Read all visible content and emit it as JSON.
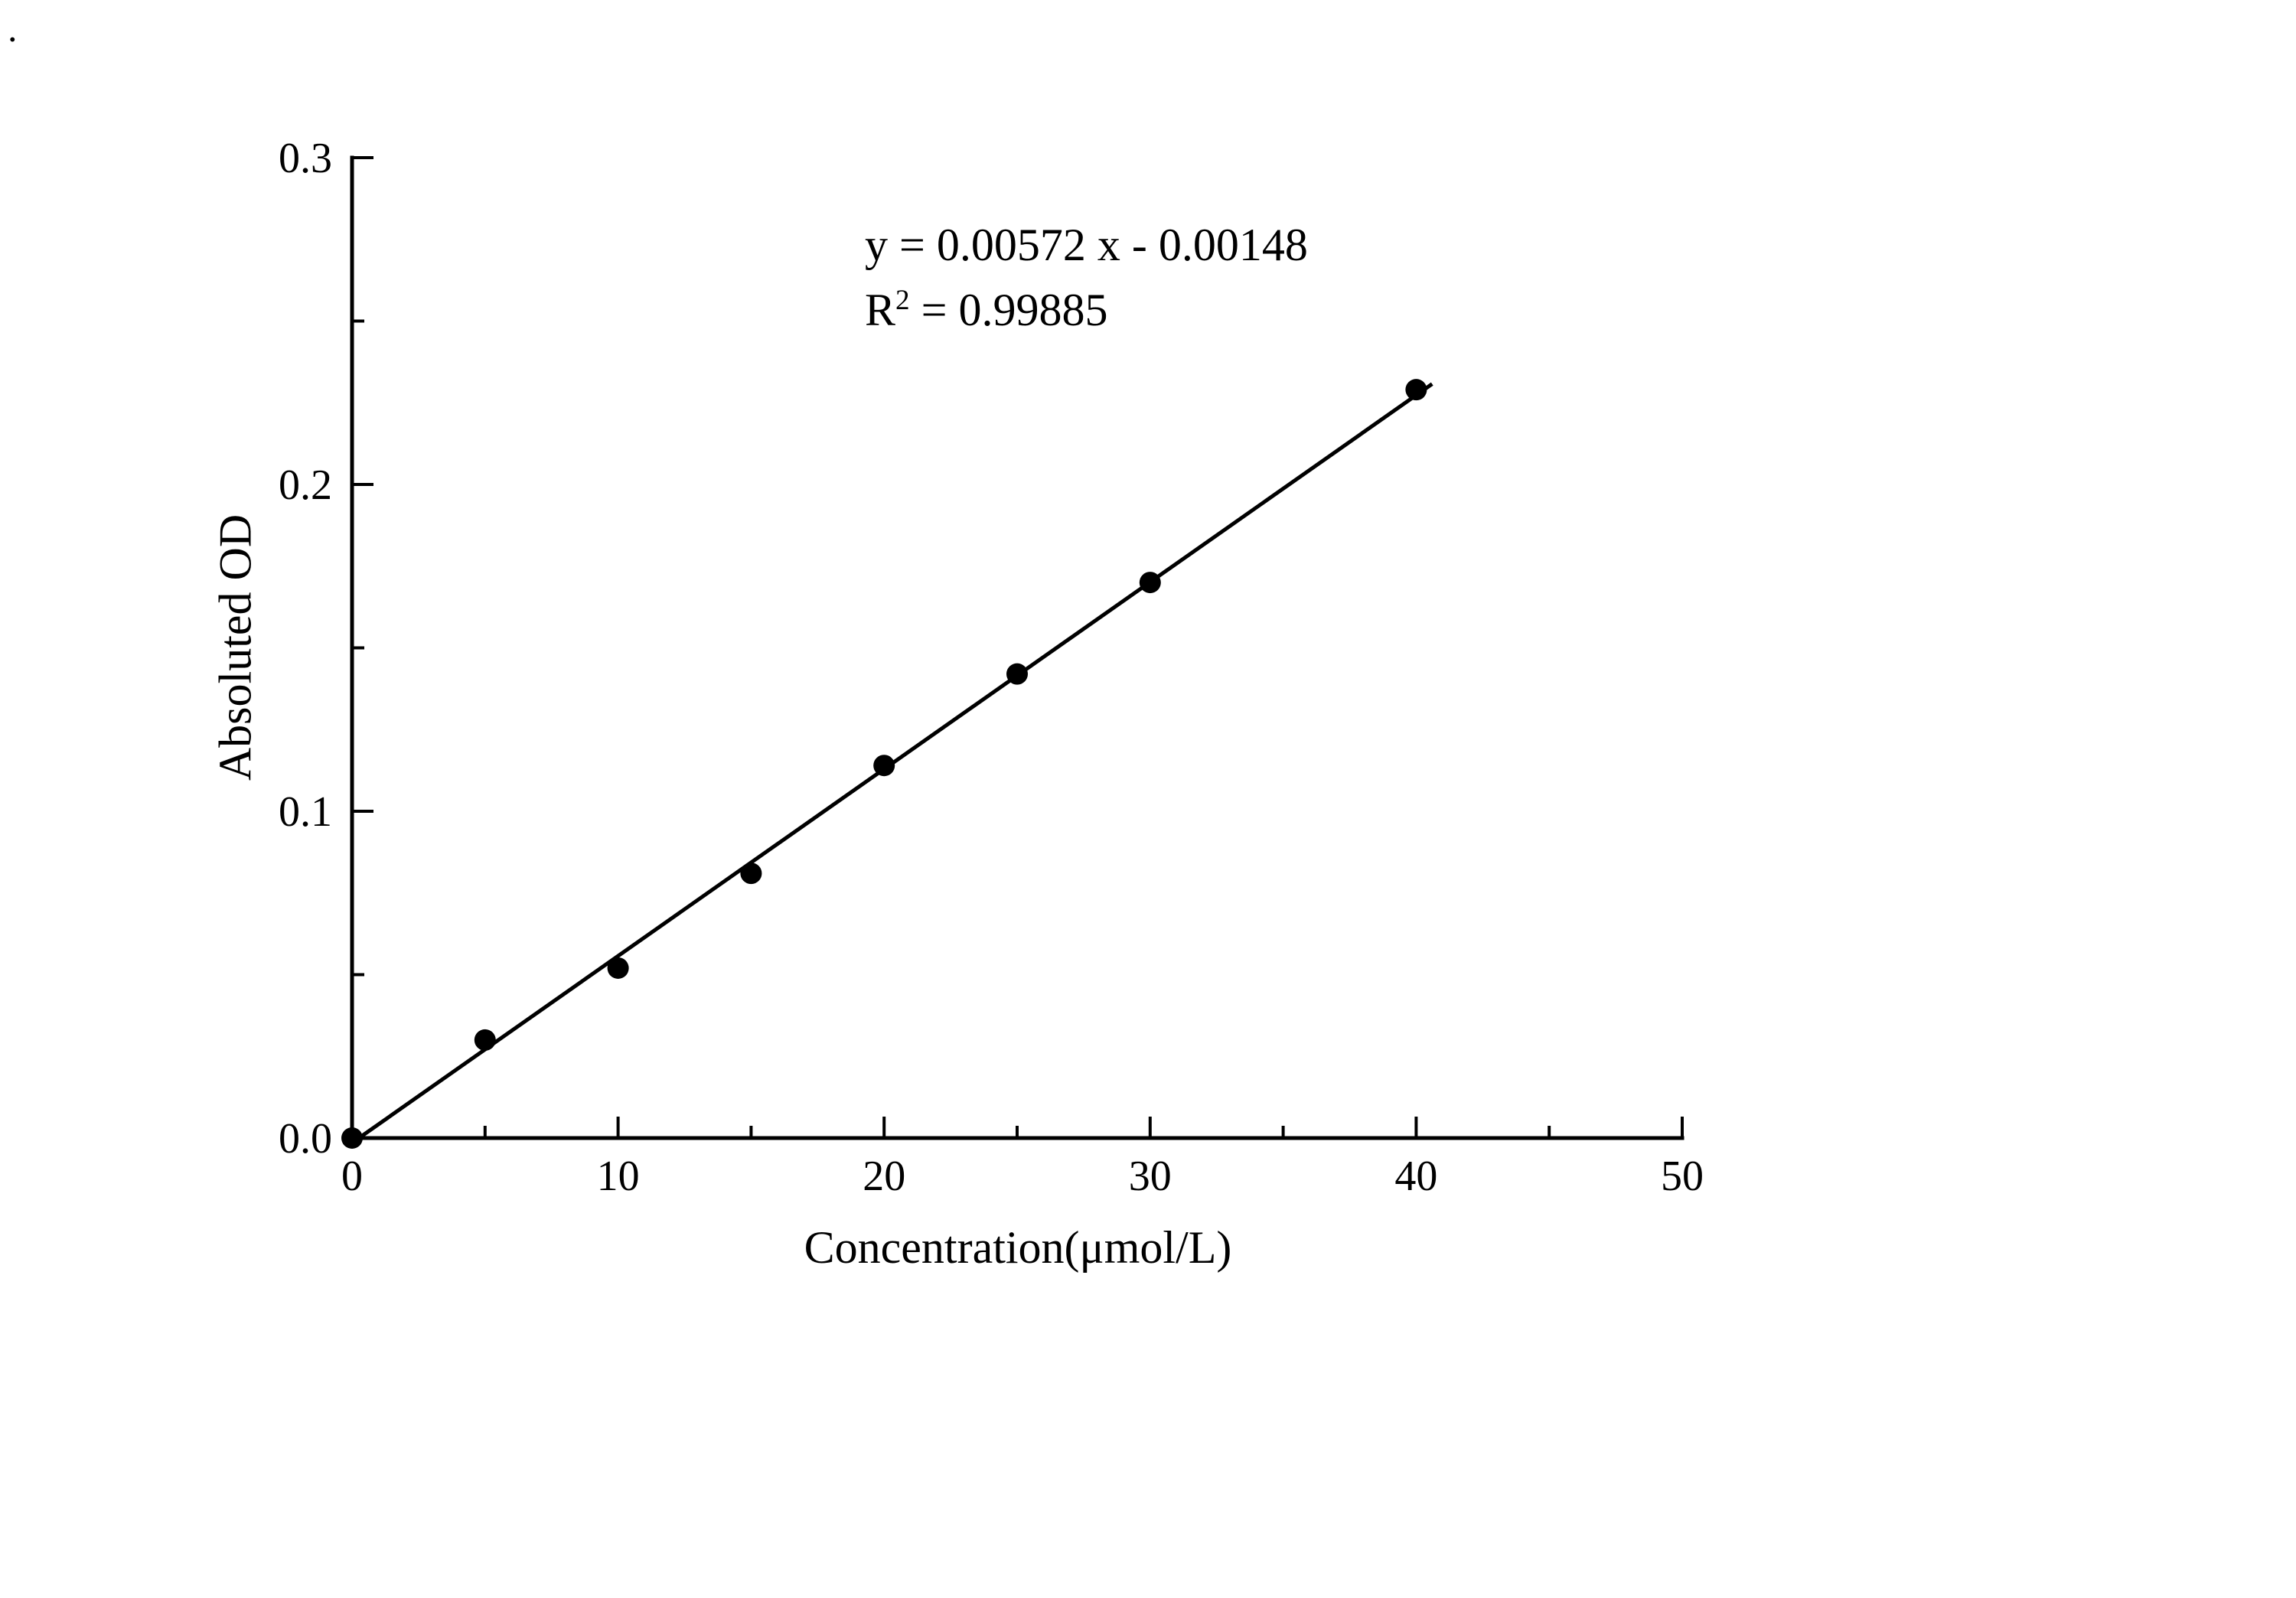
{
  "page": {
    "background": "#ffffff",
    "foreground": "#000000",
    "stray_mark": "."
  },
  "annotation": {
    "line1": "y = 0.00572 x - 0.00148",
    "r_prefix": "R",
    "r_sup": "2",
    "r_suffix": " = 0.99885"
  },
  "chart_data": {
    "type": "scatter",
    "title": "",
    "xlabel": "Concentration(μmol/L)",
    "ylabel": "Absoluted OD",
    "xlim": [
      0,
      50
    ],
    "ylim": [
      0,
      0.3
    ],
    "grid": false,
    "legend": "none",
    "x_ticks": {
      "values": [
        0,
        10,
        20,
        30,
        40,
        50
      ],
      "labels": [
        "0",
        "10",
        "20",
        "30",
        "40",
        "50"
      ],
      "minor": [
        5,
        15,
        25,
        35,
        45
      ]
    },
    "y_ticks": {
      "values": [
        0,
        0.1,
        0.2,
        0.3
      ],
      "labels": [
        "0.0",
        "0.1",
        "0.2",
        "0.3"
      ],
      "minor": [
        0.05,
        0.15,
        0.25
      ]
    },
    "points": {
      "x": [
        0,
        5,
        10,
        15,
        20,
        25,
        30,
        40
      ],
      "y": [
        0.0,
        0.03,
        0.052,
        0.081,
        0.114,
        0.142,
        0.17,
        0.229
      ]
    },
    "fit_line": {
      "slope": 0.00572,
      "intercept": -0.00148,
      "x_start": 0.26,
      "x_end": 40.6,
      "equation": "y = 0.00572 x - 0.00148",
      "r_squared": "0.99885"
    },
    "marker": {
      "shape": "circle",
      "color": "#000000"
    },
    "line_color": "#000000"
  }
}
